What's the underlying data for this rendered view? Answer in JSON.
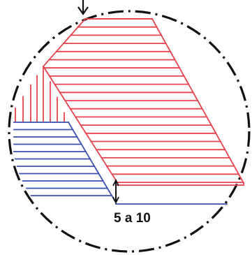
{
  "diagram": {
    "dimension_label": "5 a 10",
    "colors": {
      "outline": "#111111",
      "red_hatch": "#e8434b",
      "blue_hatch": "#3a4fb0",
      "arrow": "#111111"
    }
  }
}
